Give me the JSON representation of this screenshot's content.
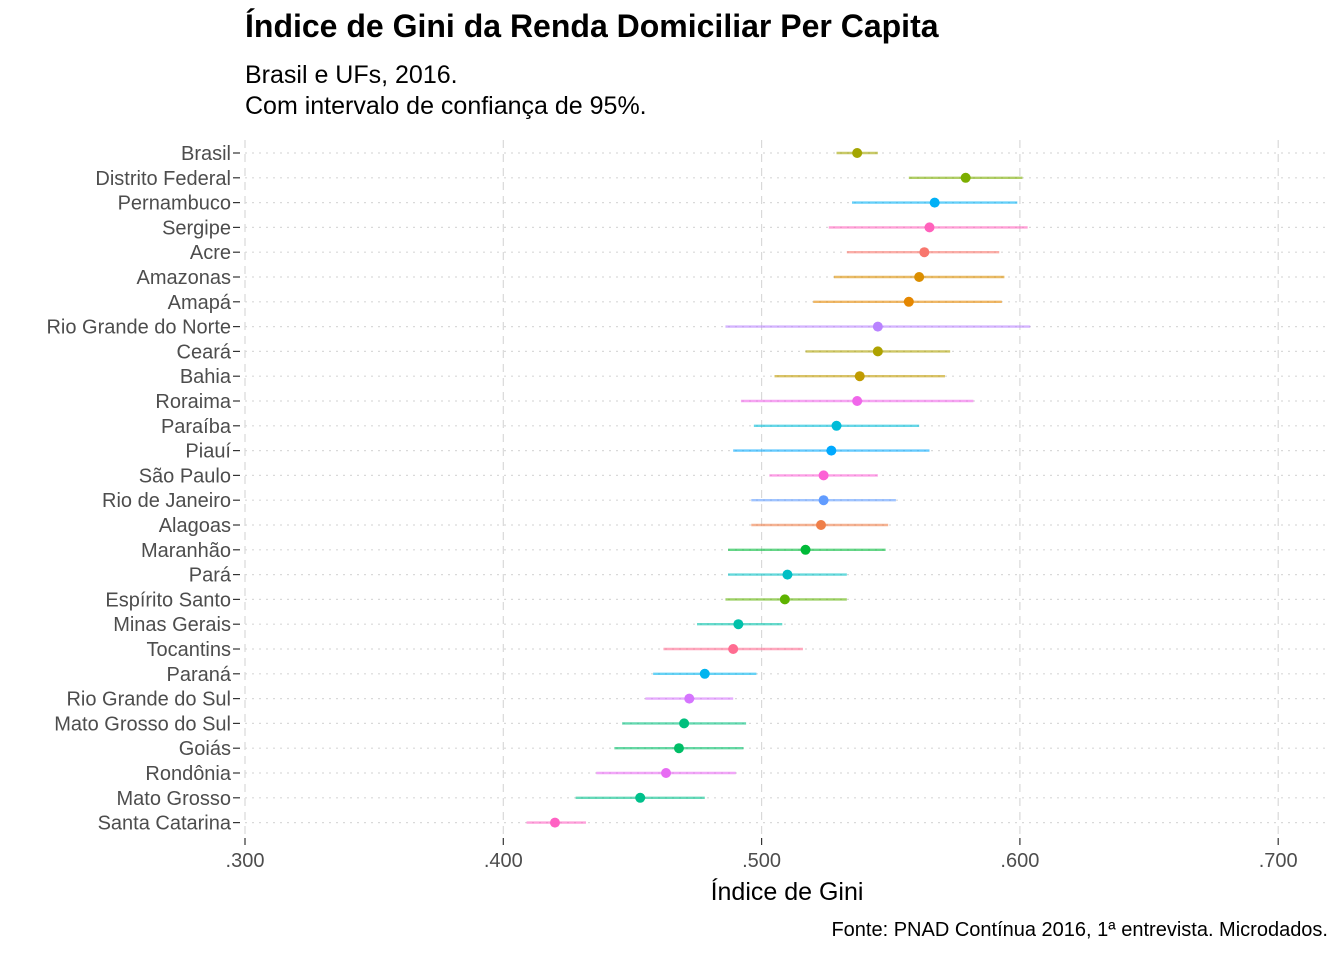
{
  "title": "Índice de Gini da Renda Domiciliar Per Capita",
  "subtitle_line1": "Brasil e UFs, 2016.",
  "subtitle_line2": "Com intervalo de confiança de 95%.",
  "caption": "Fonte: PNAD Contínua 2016, 1ª entrevista. Microdados.",
  "chart_data": {
    "type": "scatter",
    "orientation": "horizontal",
    "xlabel": "Índice de Gini",
    "ylabel": "",
    "xlim": [
      0.3,
      0.72
    ],
    "x_ticks": [
      0.3,
      0.4,
      0.5,
      0.6,
      0.7
    ],
    "x_tick_labels": [
      ".300",
      ".400",
      ".500",
      ".600",
      ".700"
    ],
    "grid": "vertical dashed major, horizontal dotted",
    "legend": "none",
    "points": [
      {
        "name": "Brasil",
        "value": 0.537,
        "lower": 0.529,
        "upper": 0.545,
        "color": "#A3A500"
      },
      {
        "name": "Distrito Federal",
        "value": 0.579,
        "lower": 0.557,
        "upper": 0.601,
        "color": "#7CAE00"
      },
      {
        "name": "Pernambuco",
        "value": 0.567,
        "lower": 0.535,
        "upper": 0.599,
        "color": "#00B0F6"
      },
      {
        "name": "Sergipe",
        "value": 0.565,
        "lower": 0.526,
        "upper": 0.603,
        "color": "#FF62BC"
      },
      {
        "name": "Acre",
        "value": 0.563,
        "lower": 0.533,
        "upper": 0.592,
        "color": "#F8766D"
      },
      {
        "name": "Amazonas",
        "value": 0.561,
        "lower": 0.528,
        "upper": 0.594,
        "color": "#DB8E00"
      },
      {
        "name": "Amapá",
        "value": 0.557,
        "lower": 0.52,
        "upper": 0.593,
        "color": "#E58700"
      },
      {
        "name": "Rio Grande do Norte",
        "value": 0.545,
        "lower": 0.486,
        "upper": 0.604,
        "color": "#B983FF"
      },
      {
        "name": "Ceará",
        "value": 0.545,
        "lower": 0.517,
        "upper": 0.573,
        "color": "#AEA200"
      },
      {
        "name": "Bahia",
        "value": 0.538,
        "lower": 0.505,
        "upper": 0.571,
        "color": "#C09B00"
      },
      {
        "name": "Roraima",
        "value": 0.537,
        "lower": 0.492,
        "upper": 0.582,
        "color": "#F066EA"
      },
      {
        "name": "Paraíba",
        "value": 0.529,
        "lower": 0.497,
        "upper": 0.561,
        "color": "#00BCD8"
      },
      {
        "name": "Piauí",
        "value": 0.527,
        "lower": 0.489,
        "upper": 0.565,
        "color": "#00A9FF"
      },
      {
        "name": "São Paulo",
        "value": 0.524,
        "lower": 0.503,
        "upper": 0.545,
        "color": "#FC61D5"
      },
      {
        "name": "Rio de Janeiro",
        "value": 0.524,
        "lower": 0.496,
        "upper": 0.552,
        "color": "#619CFF"
      },
      {
        "name": "Alagoas",
        "value": 0.523,
        "lower": 0.496,
        "upper": 0.549,
        "color": "#EF7F49"
      },
      {
        "name": "Maranhão",
        "value": 0.517,
        "lower": 0.487,
        "upper": 0.548,
        "color": "#00BA38"
      },
      {
        "name": "Pará",
        "value": 0.51,
        "lower": 0.487,
        "upper": 0.533,
        "color": "#00BFC4"
      },
      {
        "name": "Espírito Santo",
        "value": 0.509,
        "lower": 0.486,
        "upper": 0.533,
        "color": "#5EB300"
      },
      {
        "name": "Minas Gerais",
        "value": 0.491,
        "lower": 0.475,
        "upper": 0.508,
        "color": "#00C1AA"
      },
      {
        "name": "Tocantins",
        "value": 0.489,
        "lower": 0.462,
        "upper": 0.516,
        "color": "#FF6C91"
      },
      {
        "name": "Paraná",
        "value": 0.478,
        "lower": 0.458,
        "upper": 0.498,
        "color": "#00B4EF"
      },
      {
        "name": "Rio Grande do Sul",
        "value": 0.472,
        "lower": 0.455,
        "upper": 0.489,
        "color": "#D575FE"
      },
      {
        "name": "Mato Grosso do Sul",
        "value": 0.47,
        "lower": 0.446,
        "upper": 0.494,
        "color": "#00BF7D"
      },
      {
        "name": "Goiás",
        "value": 0.468,
        "lower": 0.443,
        "upper": 0.493,
        "color": "#00BE67"
      },
      {
        "name": "Rondônia",
        "value": 0.463,
        "lower": 0.436,
        "upper": 0.49,
        "color": "#E76BF3"
      },
      {
        "name": "Mato Grosso",
        "value": 0.453,
        "lower": 0.428,
        "upper": 0.478,
        "color": "#00C08B"
      },
      {
        "name": "Santa Catarina",
        "value": 0.42,
        "lower": 0.409,
        "upper": 0.432,
        "color": "#FF61C3"
      }
    ]
  }
}
